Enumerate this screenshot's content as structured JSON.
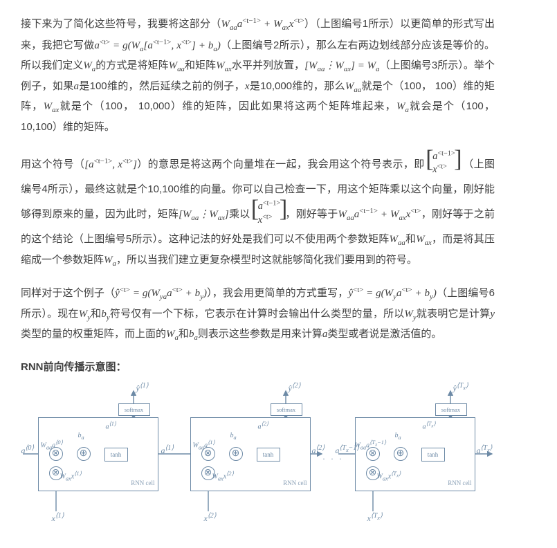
{
  "para1": {
    "t1": "接下来为了简化这些符号，我要将这部分（",
    "f1": "W<sub>aa</sub>a<sup>&lt;t−1&gt;</sup> + W<sub>ax</sub>x<sup>&lt;t&gt;</sup>",
    "t2": "）（上图编号1所示）以更简单的形式写出来，我把它写做",
    "f2": "a<sup>&lt;t&gt;</sup> = g(W<sub>a</sub>[a<sup>&lt;t−1&gt;</sup>, x<sup>&lt;t&gt;</sup>] + b<sub>a</sub>)",
    "t3": "（上图编号2所示），那么左右两边划线部分应该是等价的。所以我们定义",
    "f3": "W<sub>a</sub>",
    "t4": "的方式是将矩阵",
    "f4": "W<sub>aa</sub>",
    "t5": "和矩阵",
    "f5": "W<sub>ax</sub>",
    "t6": "水平并列放置，",
    "f6": "[W<sub>aa</sub>⋮W<sub>ax</sub>] = W<sub>a</sub>",
    "t7": "（上图编号3所示）。举个例子，如果",
    "f7": "a",
    "t8": "是100维的，然后延续之前的例子，",
    "f8": "x",
    "t9": "是10,000维的，那么",
    "f9": "W<sub>aa</sub>",
    "t10": "就是个（100， 100）维的矩阵，",
    "f10": "W<sub>ax</sub>",
    "t11": "就是个（100， 10,000）维的矩阵，因此如果将这两个矩阵堆起来，",
    "f11": "W<sub>a</sub>",
    "t12": "就会是个（100， 10,100）维的矩阵。"
  },
  "para2": {
    "t1": "用这个符号（",
    "f1": "[a<sup>&lt;t−1&gt;</sup>, x<sup>&lt;t&gt;</sup>]",
    "t2": "）的意思是将这两个向量堆在一起，我会用这个符号表示，即",
    "col_top1": "a<sup>&lt;t−1&gt;</sup>",
    "col_bot1": "x<sup>&lt;t&gt;</sup>",
    "t3": "（上图编号4所示），最终这就是个10,100维的向量。你可以自己检查一下，用这个矩阵乘以这个向量，刚好能够得到原来的量，因为此时，矩阵",
    "f2": "[W<sub>aa</sub>⋮W<sub>ax</sub>]",
    "t4": "乘以",
    "col_top2": "a<sup>&lt;t−1&gt;</sup>",
    "col_bot2": "x<sup>&lt;t&gt;</sup>",
    "t5": "，刚好等于",
    "f3": "W<sub>aa</sub>a<sup>&lt;t−1&gt;</sup> + W<sub>ax</sub>x<sup>&lt;t&gt;</sup>",
    "t6": "，刚好等于之前的这个结论（上图编号5所示）。这种记法的好处是我们可以不使用两个参数矩阵",
    "f4": "W<sub>aa</sub>",
    "t7": "和",
    "f5": "W<sub>ax</sub>",
    "t8": "，而是将其压缩成一个参数矩阵",
    "f6": "W<sub>a</sub>",
    "t9": "，所以当我们建立更复杂模型时这就能够简化我们要用到的符号。"
  },
  "para3": {
    "t1": "同样对于这个例子（",
    "f1": "ŷ<sup>&lt;t&gt;</sup> = g(W<sub>ya</sub>a<sup>&lt;t&gt;</sup> + b<sub>y</sub>)",
    "t2": "），我会用更简单的方式重写，",
    "f2": "ŷ<sup>&lt;t&gt;</sup> = g(W<sub>y</sub>a<sup>&lt;t&gt;</sup> + b<sub>y</sub>)",
    "t3": "（上图编号6所示）。现在",
    "f3": "W<sub>y</sub>",
    "t4": "和",
    "f4": "b<sub>y</sub>",
    "t5": "符号仅有一个下标，它表示在计算时会输出什么类型的量，所以",
    "f5": "W<sub>y</sub>",
    "t6": "就表明它是计算",
    "f6": "y",
    "t7": "类型的量的权重矩阵，而上面的",
    "f7": "W<sub>a</sub>",
    "t8": "和",
    "f8": "b<sub>a</sub>",
    "t9": "则表示这些参数是用来计算",
    "f9": "a",
    "t10": "类型或者说是激活值的。"
  },
  "title": "RNN前向传播示意图：",
  "diagram": {
    "stroke": "#6d8aa6",
    "cell_border": "#6d8aa6",
    "cell_name": "RNN cell",
    "softmax": "softmax",
    "tanh": "tanh",
    "otimes": "⊗",
    "oplus": "⊕",
    "a0": "a<sup>⟨0⟩</sup>",
    "a1": "a<sup>⟨1⟩</sup>",
    "a2": "a<sup>⟨2⟩</sup>",
    "aTm1": "a<sup>⟨T<sub>x</sub>−1⟩</sup>",
    "aTx": "a<sup>⟨T<sub>x</sub>⟩</sup>",
    "x1": "x<sup>⟨1⟩</sup>",
    "x2": "x<sup>⟨2⟩</sup>",
    "xT": "x<sup>⟨T<sub>x</sub>⟩</sup>",
    "y1": "ŷ<sup>⟨1⟩</sup>",
    "y2": "ŷ<sup>⟨2⟩</sup>",
    "yT": "ŷ<sup>⟨T<sub>x</sub>⟩</sup>",
    "ba": "b<sub>a</sub>",
    "Waa0": "W<sub>aa</sub>a<sup>⟨0⟩</sup>",
    "Wax1": "W<sub>ax</sub>x<sup>⟨1⟩</sup>",
    "Waa1": "W<sub>aa</sub>a<sup>⟨1⟩</sup>",
    "Wax2": "W<sub>ax</sub>x<sup>⟨2⟩</sup>",
    "WaaT": "W<sub>aa</sub>a<sup>⟨T<sub>x</sub>−1⟩</sup>",
    "WaxT": "W<sub>ax</sub>x<sup>⟨T<sub>x</sub>⟩</sup>",
    "ain1": "a<sup>⟨1⟩</sup>",
    "ain2": "a<sup>⟨2⟩</sup>",
    "ainT": "a<sup>⟨T<sub>x</sub>⟩</sup>",
    "dots": ". . ."
  }
}
